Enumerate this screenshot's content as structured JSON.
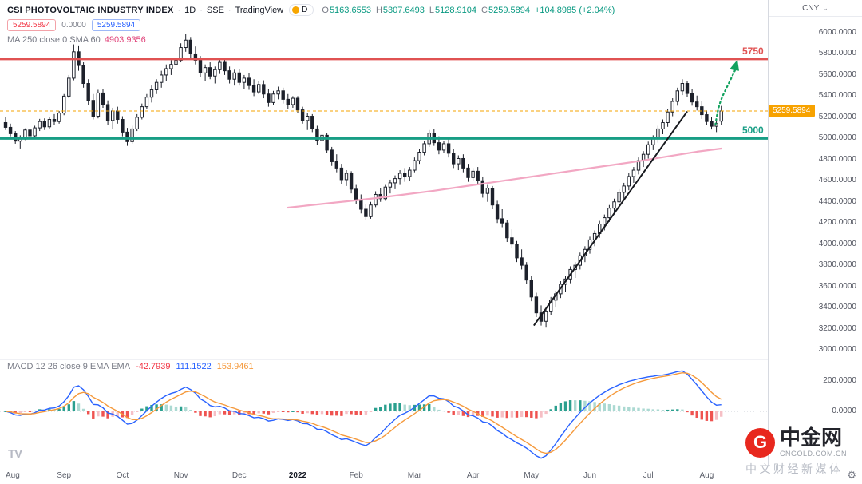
{
  "header": {
    "symbol": "CSI PHOTOVOLTAIC INDUSTRY INDEX",
    "sep": "·",
    "interval": "1D",
    "exchange": "SSE",
    "vendor": "TradingView",
    "badge": "D",
    "currency": "CNY",
    "ohlc_keys": [
      "O",
      "H",
      "L",
      "C"
    ],
    "ohlc": {
      "o": "5163.6553",
      "h": "5307.6493",
      "l": "5128.9104",
      "c": "5259.5894",
      "change": "+104.8985 (+2.04%)"
    }
  },
  "flags": {
    "red": "5259.5894",
    "neutral": "0.0000",
    "blue": "5259.5894"
  },
  "ma_indicator": {
    "label": "MA 250 close 0 SMA 60",
    "value": "4903.9356"
  },
  "macd_indicator": {
    "label": "MACD 12 26 close 9 EMA EMA",
    "hist": "-42.7939",
    "macd": "111.1522",
    "signal": "153.9461"
  },
  "levels": {
    "resistance_label": "5750",
    "support_label": "5000",
    "current_label": "5259.5894"
  },
  "watermark": {
    "logo_letter": "G",
    "brand": "中金网",
    "domain": "CNGOLD.COM.CN",
    "tagline": "中文财经新媒体"
  },
  "footer": {
    "tv_logo_text": "TV"
  },
  "icons": {
    "gear": "⚙",
    "chevron_down": "⌄"
  },
  "colors": {
    "up_candle": "#ffffff",
    "down_candle": "#1d212b",
    "candle_stroke": "#1d212b",
    "ma250": "#f2a7c3",
    "resistance": "#e05252",
    "support": "#189e85",
    "current_line": "#f5a300",
    "macd_line": "#2962ff",
    "signal_line": "#f59a3d",
    "hist_up": "#2ba08f",
    "hist_up_weak": "#abd9d2",
    "hist_down": "#ef5350",
    "hist_down_weak": "#f6bfc5",
    "trendline": "#17191e",
    "arrow": "#12a25e",
    "positive_text": "#089981"
  },
  "chart_data": {
    "type": "candlestick",
    "symbol": "CSI Photovoltaic Industry Index",
    "interval": "1D",
    "levels": {
      "resistance": 5750,
      "support": 5000,
      "current": 5259.5894
    },
    "y_axis": {
      "min": 2950,
      "max": 6100,
      "ticks": [
        {
          "v": 6000,
          "label": "6000.0000"
        },
        {
          "v": 5800,
          "label": "5800.0000"
        },
        {
          "v": 5600,
          "label": "5600.0000"
        },
        {
          "v": 5400,
          "label": "5400.0000"
        },
        {
          "v": 5200,
          "label": "5200.0000"
        },
        {
          "v": 5000,
          "label": "5000.0000"
        },
        {
          "v": 4800,
          "label": "4800.0000"
        },
        {
          "v": 4600,
          "label": "4600.0000"
        },
        {
          "v": 4400,
          "label": "4400.0000"
        },
        {
          "v": 4200,
          "label": "4200.0000"
        },
        {
          "v": 4000,
          "label": "4000.0000"
        },
        {
          "v": 3800,
          "label": "3800.0000"
        },
        {
          "v": 3600,
          "label": "3600.0000"
        },
        {
          "v": 3400,
          "label": "3400.0000"
        },
        {
          "v": 3200,
          "label": "3200.0000"
        },
        {
          "v": 3000,
          "label": "3000.0000"
        }
      ]
    },
    "macd_axis": {
      "ticks": [
        {
          "v": 200,
          "label": "200.0000"
        },
        {
          "v": 0,
          "label": "0.0000"
        }
      ]
    },
    "x_axis": {
      "labels": [
        {
          "label": "Aug",
          "i": 0
        },
        {
          "label": "Sep",
          "i": 12
        },
        {
          "label": "Oct",
          "i": 24
        },
        {
          "label": "Nov",
          "i": 36
        },
        {
          "label": "Dec",
          "i": 48
        },
        {
          "label": "2022",
          "i": 60,
          "bold": true
        },
        {
          "label": "Feb",
          "i": 72
        },
        {
          "label": "Mar",
          "i": 84
        },
        {
          "label": "Apr",
          "i": 96
        },
        {
          "label": "May",
          "i": 108
        },
        {
          "label": "Jun",
          "i": 120
        },
        {
          "label": "Jul",
          "i": 132
        },
        {
          "label": "Aug",
          "i": 144
        }
      ]
    },
    "candles": [
      [
        5150,
        5200,
        5080,
        5105
      ],
      [
        5105,
        5140,
        5020,
        5045
      ],
      [
        5045,
        5070,
        4950,
        4975
      ],
      [
        4975,
        5030,
        4905,
        5010
      ],
      [
        5010,
        5095,
        4985,
        5080
      ],
      [
        5080,
        5110,
        5000,
        5025
      ],
      [
        5025,
        5120,
        5010,
        5100
      ],
      [
        5100,
        5185,
        5070,
        5160
      ],
      [
        5160,
        5190,
        5080,
        5110
      ],
      [
        5110,
        5200,
        5090,
        5180
      ],
      [
        5180,
        5230,
        5130,
        5160
      ],
      [
        5160,
        5260,
        5140,
        5240
      ],
      [
        5240,
        5420,
        5220,
        5400
      ],
      [
        5400,
        5600,
        5380,
        5570
      ],
      [
        5570,
        5890,
        5550,
        5820
      ],
      [
        5820,
        5880,
        5640,
        5690
      ],
      [
        5690,
        5720,
        5480,
        5520
      ],
      [
        5520,
        5560,
        5320,
        5360
      ],
      [
        5360,
        5420,
        5180,
        5210
      ],
      [
        5210,
        5460,
        5190,
        5430
      ],
      [
        5430,
        5470,
        5290,
        5320
      ],
      [
        5320,
        5360,
        5130,
        5170
      ],
      [
        5170,
        5290,
        5090,
        5260
      ],
      [
        5260,
        5300,
        5140,
        5180
      ],
      [
        5180,
        5210,
        5020,
        5060
      ],
      [
        5060,
        5100,
        4930,
        4970
      ],
      [
        4970,
        5120,
        4950,
        5090
      ],
      [
        5090,
        5230,
        5070,
        5200
      ],
      [
        5200,
        5330,
        5180,
        5300
      ],
      [
        5300,
        5420,
        5280,
        5390
      ],
      [
        5390,
        5500,
        5340,
        5460
      ],
      [
        5460,
        5560,
        5420,
        5530
      ],
      [
        5530,
        5640,
        5480,
        5600
      ],
      [
        5600,
        5700,
        5540,
        5660
      ],
      [
        5660,
        5740,
        5600,
        5700
      ],
      [
        5700,
        5780,
        5640,
        5740
      ],
      [
        5740,
        5900,
        5720,
        5860
      ],
      [
        5860,
        5990,
        5820,
        5930
      ],
      [
        5930,
        5960,
        5760,
        5800
      ],
      [
        5800,
        5870,
        5700,
        5740
      ],
      [
        5740,
        5780,
        5580,
        5620
      ],
      [
        5620,
        5700,
        5540,
        5670
      ],
      [
        5670,
        5720,
        5560,
        5590
      ],
      [
        5590,
        5680,
        5520,
        5650
      ],
      [
        5650,
        5750,
        5610,
        5720
      ],
      [
        5720,
        5760,
        5600,
        5640
      ],
      [
        5640,
        5680,
        5520,
        5560
      ],
      [
        5560,
        5650,
        5500,
        5620
      ],
      [
        5620,
        5660,
        5500,
        5530
      ],
      [
        5530,
        5600,
        5470,
        5570
      ],
      [
        5570,
        5620,
        5460,
        5500
      ],
      [
        5500,
        5560,
        5400,
        5440
      ],
      [
        5440,
        5540,
        5420,
        5510
      ],
      [
        5510,
        5550,
        5380,
        5420
      ],
      [
        5420,
        5470,
        5300,
        5340
      ],
      [
        5340,
        5450,
        5320,
        5420
      ],
      [
        5420,
        5490,
        5370,
        5450
      ],
      [
        5450,
        5480,
        5330,
        5370
      ],
      [
        5370,
        5420,
        5280,
        5320
      ],
      [
        5320,
        5400,
        5290,
        5380
      ],
      [
        5380,
        5400,
        5240,
        5270
      ],
      [
        5270,
        5300,
        5140,
        5170
      ],
      [
        5170,
        5240,
        5080,
        5210
      ],
      [
        5210,
        5230,
        5060,
        5090
      ],
      [
        5090,
        5120,
        4940,
        4980
      ],
      [
        4980,
        5060,
        4900,
        5030
      ],
      [
        5030,
        5050,
        4860,
        4890
      ],
      [
        4890,
        4920,
        4740,
        4780
      ],
      [
        4780,
        4850,
        4680,
        4720
      ],
      [
        4720,
        4760,
        4570,
        4610
      ],
      [
        4610,
        4700,
        4550,
        4670
      ],
      [
        4670,
        4690,
        4480,
        4520
      ],
      [
        4520,
        4560,
        4380,
        4420
      ],
      [
        4420,
        4470,
        4290,
        4330
      ],
      [
        4330,
        4380,
        4230,
        4260
      ],
      [
        4260,
        4400,
        4240,
        4370
      ],
      [
        4370,
        4500,
        4350,
        4470
      ],
      [
        4470,
        4530,
        4400,
        4430
      ],
      [
        4430,
        4560,
        4410,
        4540
      ],
      [
        4540,
        4610,
        4480,
        4580
      ],
      [
        4580,
        4650,
        4520,
        4620
      ],
      [
        4620,
        4700,
        4560,
        4670
      ],
      [
        4670,
        4720,
        4590,
        4640
      ],
      [
        4640,
        4730,
        4600,
        4700
      ],
      [
        4700,
        4820,
        4680,
        4790
      ],
      [
        4790,
        4900,
        4760,
        4870
      ],
      [
        4870,
        4980,
        4840,
        4950
      ],
      [
        4950,
        5080,
        4920,
        5050
      ],
      [
        5050,
        5090,
        4930,
        4960
      ],
      [
        4960,
        5020,
        4850,
        4890
      ],
      [
        4890,
        4980,
        4860,
        4950
      ],
      [
        4950,
        4990,
        4820,
        4860
      ],
      [
        4860,
        4900,
        4720,
        4760
      ],
      [
        4760,
        4840,
        4700,
        4810
      ],
      [
        4810,
        4850,
        4680,
        4720
      ],
      [
        4720,
        4760,
        4590,
        4630
      ],
      [
        4630,
        4720,
        4600,
        4690
      ],
      [
        4690,
        4730,
        4560,
        4600
      ],
      [
        4600,
        4640,
        4440,
        4480
      ],
      [
        4480,
        4560,
        4400,
        4530
      ],
      [
        4530,
        4550,
        4330,
        4370
      ],
      [
        4370,
        4410,
        4200,
        4240
      ],
      [
        4240,
        4330,
        4160,
        4200
      ],
      [
        4200,
        4230,
        4020,
        4060
      ],
      [
        4060,
        4140,
        3960,
        4000
      ],
      [
        4000,
        4030,
        3830,
        3870
      ],
      [
        3870,
        3950,
        3760,
        3800
      ],
      [
        3800,
        3830,
        3620,
        3660
      ],
      [
        3660,
        3700,
        3460,
        3500
      ],
      [
        3500,
        3540,
        3310,
        3350
      ],
      [
        3350,
        3420,
        3230,
        3270
      ],
      [
        3270,
        3390,
        3210,
        3360
      ],
      [
        3360,
        3500,
        3330,
        3470
      ],
      [
        3470,
        3560,
        3400,
        3530
      ],
      [
        3530,
        3650,
        3490,
        3620
      ],
      [
        3620,
        3700,
        3550,
        3670
      ],
      [
        3670,
        3790,
        3630,
        3760
      ],
      [
        3760,
        3830,
        3680,
        3800
      ],
      [
        3800,
        3920,
        3760,
        3890
      ],
      [
        3890,
        3980,
        3830,
        3950
      ],
      [
        3950,
        4070,
        3910,
        4040
      ],
      [
        4040,
        4130,
        3980,
        4100
      ],
      [
        4100,
        4220,
        4060,
        4190
      ],
      [
        4190,
        4280,
        4130,
        4250
      ],
      [
        4250,
        4370,
        4210,
        4340
      ],
      [
        4340,
        4430,
        4280,
        4400
      ],
      [
        4400,
        4520,
        4360,
        4490
      ],
      [
        4490,
        4580,
        4430,
        4550
      ],
      [
        4550,
        4670,
        4510,
        4640
      ],
      [
        4640,
        4730,
        4580,
        4700
      ],
      [
        4700,
        4820,
        4660,
        4790
      ],
      [
        4790,
        4880,
        4730,
        4850
      ],
      [
        4850,
        4970,
        4810,
        4940
      ],
      [
        4940,
        5030,
        4890,
        5000
      ],
      [
        5000,
        5120,
        4960,
        5090
      ],
      [
        5090,
        5180,
        5040,
        5150
      ],
      [
        5150,
        5280,
        5110,
        5250
      ],
      [
        5250,
        5380,
        5210,
        5350
      ],
      [
        5350,
        5480,
        5310,
        5450
      ],
      [
        5450,
        5560,
        5410,
        5520
      ],
      [
        5520,
        5545,
        5390,
        5425
      ],
      [
        5425,
        5465,
        5310,
        5345
      ],
      [
        5345,
        5405,
        5265,
        5300
      ],
      [
        5300,
        5350,
        5185,
        5225
      ],
      [
        5225,
        5265,
        5125,
        5160
      ],
      [
        5160,
        5205,
        5085,
        5115
      ],
      [
        5115,
        5180,
        5060,
        5140
      ],
      [
        5163.6553,
        5307.6493,
        5128.9104,
        5259.5894
      ]
    ],
    "ma250": [
      [
        58,
        4345
      ],
      [
        64,
        4375
      ],
      [
        70,
        4405
      ],
      [
        76,
        4435
      ],
      [
        82,
        4470
      ],
      [
        88,
        4505
      ],
      [
        94,
        4545
      ],
      [
        100,
        4585
      ],
      [
        106,
        4625
      ],
      [
        112,
        4665
      ],
      [
        118,
        4705
      ],
      [
        124,
        4745
      ],
      [
        130,
        4785
      ],
      [
        136,
        4830
      ],
      [
        142,
        4875
      ],
      [
        147,
        4903.94
      ]
    ],
    "trendline": {
      "from": [
        108.5,
        3230
      ],
      "to": [
        140,
        5255
      ]
    },
    "projection_arrow": {
      "from": [
        145.8,
        5130
      ],
      "to": [
        150,
        5700
      ]
    }
  }
}
